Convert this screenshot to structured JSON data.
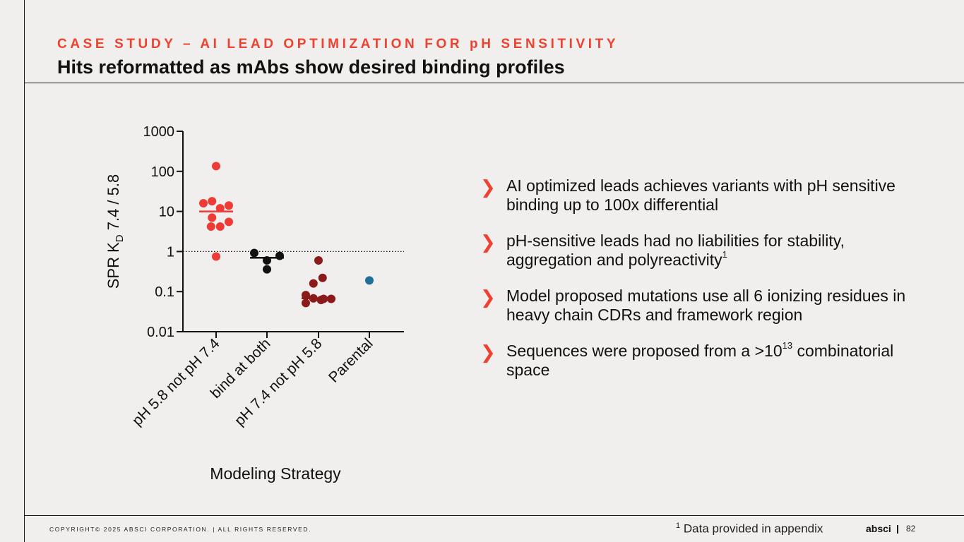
{
  "header": {
    "eyebrow": "CASE STUDY – AI LEAD OPTIMIZATION FOR pH SENSITIVITY",
    "title": "Hits reformatted as mAbs show desired binding profiles"
  },
  "bullets": [
    {
      "text": "AI optimized leads achieves variants with pH sensitive binding up to 100x differential",
      "sup": ""
    },
    {
      "text": "pH-sensitive leads had no liabilities for stability, aggregation and polyreactivity",
      "sup": "1"
    },
    {
      "text": "Model proposed mutations use all 6 ionizing residues in heavy chain CDRs and framework region",
      "sup": ""
    },
    {
      "text": "Sequences were proposed from a >10",
      "sup": "13",
      "tail": " combinatorial space"
    }
  ],
  "footer": {
    "copyright": "COPYRIGHT© 2025 ABSCI CORPORATION.  |  ALL RIGHTS RESERVED.",
    "footnote_mark": "1",
    "footnote": "Data provided in appendix",
    "logo": "absci",
    "page": "82"
  },
  "colors": {
    "accent": "#ef4130",
    "red": "#ef3b36",
    "black": "#111111",
    "darkred": "#8b1a1a",
    "blue": "#1f6f9a"
  },
  "chart_data": {
    "type": "scatter",
    "scale": "log",
    "ylim": [
      0.01,
      1000
    ],
    "yticks": [
      0.01,
      0.1,
      1,
      10,
      100,
      1000
    ],
    "ytick_labels": [
      "0.01",
      "0.1",
      "1",
      "10",
      "100",
      "1000"
    ],
    "ylabel_main": "SPR K",
    "ylabel_sub": "D",
    "ylabel_rest": " 7.4 / 5.8",
    "xlabel": "Modeling Strategy",
    "reference_line": 1,
    "categories": [
      "pH 5.8 not pH 7.4",
      "bind at both",
      "pH 7.4 not pH 5.8",
      "Parental"
    ],
    "series": [
      {
        "name": "pH 5.8 not pH 7.4",
        "color": "#ef3b36",
        "median": 10,
        "points": [
          {
            "j": 0.0,
            "y": 135
          },
          {
            "j": -0.25,
            "y": 16
          },
          {
            "j": -0.08,
            "y": 18
          },
          {
            "j": 0.25,
            "y": 14
          },
          {
            "j": 0.08,
            "y": 12
          },
          {
            "j": -0.08,
            "y": 7
          },
          {
            "j": 0.25,
            "y": 5.5
          },
          {
            "j": -0.1,
            "y": 4.2
          },
          {
            "j": 0.08,
            "y": 4.2
          },
          {
            "j": 0.0,
            "y": 0.75
          }
        ]
      },
      {
        "name": "bind at both",
        "color": "#111111",
        "median": 0.7,
        "points": [
          {
            "j": -0.25,
            "y": 0.92
          },
          {
            "j": 0.25,
            "y": 0.78
          },
          {
            "j": 0.0,
            "y": 0.6
          },
          {
            "j": 0.0,
            "y": 0.36
          }
        ]
      },
      {
        "name": "pH 7.4 not pH 5.8",
        "color": "#8b1a1a",
        "median": 0.068,
        "points": [
          {
            "j": 0.0,
            "y": 0.6
          },
          {
            "j": 0.08,
            "y": 0.22
          },
          {
            "j": -0.1,
            "y": 0.16
          },
          {
            "j": -0.25,
            "y": 0.082
          },
          {
            "j": -0.1,
            "y": 0.068
          },
          {
            "j": 0.1,
            "y": 0.066
          },
          {
            "j": 0.25,
            "y": 0.066
          },
          {
            "j": -0.25,
            "y": 0.052
          },
          {
            "j": 0.05,
            "y": 0.062
          }
        ]
      },
      {
        "name": "Parental",
        "color": "#1f6f9a",
        "median": null,
        "points": [
          {
            "j": 0.0,
            "y": 0.19
          }
        ]
      }
    ]
  }
}
